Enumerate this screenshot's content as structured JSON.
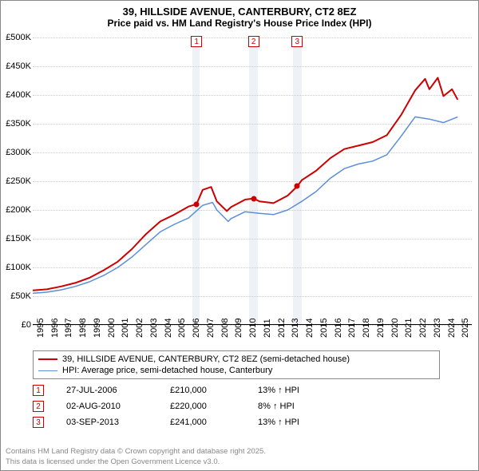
{
  "title": {
    "line1": "39, HILLSIDE AVENUE, CANTERBURY, CT2 8EZ",
    "line2": "Price paid vs. HM Land Registry's House Price Index (HPI)",
    "fontsize1": 13,
    "fontsize2": 12,
    "color": "#000000"
  },
  "chart": {
    "type": "line",
    "background_color": "#ffffff",
    "grid_color": "#cccccc",
    "x_range": [
      1995,
      2026
    ],
    "y_range": [
      0,
      500000
    ],
    "y_ticks": [
      0,
      50000,
      100000,
      150000,
      200000,
      250000,
      300000,
      350000,
      400000,
      450000,
      500000
    ],
    "y_tick_labels": [
      "£0",
      "£50K",
      "£100K",
      "£150K",
      "£200K",
      "£250K",
      "£300K",
      "£350K",
      "£400K",
      "£450K",
      "£500K"
    ],
    "x_ticks": [
      1995,
      1996,
      1997,
      1998,
      1999,
      2000,
      2001,
      2002,
      2003,
      2004,
      2005,
      2006,
      2007,
      2008,
      2009,
      2010,
      2011,
      2012,
      2013,
      2014,
      2015,
      2016,
      2017,
      2018,
      2019,
      2020,
      2021,
      2022,
      2023,
      2024,
      2025
    ],
    "label_fontsize": 11,
    "shade_bands": [
      {
        "x_start": 2006.3,
        "x_end": 2006.8
      },
      {
        "x_start": 2010.3,
        "x_end": 2010.9
      },
      {
        "x_start": 2013.4,
        "x_end": 2014.0
      }
    ],
    "shade_color": "#eef1f6",
    "markers": [
      {
        "n": "1",
        "x": 2006.56
      },
      {
        "n": "2",
        "x": 2010.59
      },
      {
        "n": "3",
        "x": 2013.67
      }
    ],
    "marker_border": "#cc0000",
    "sale_points": [
      {
        "x": 2006.56,
        "y": 210000
      },
      {
        "x": 2010.59,
        "y": 220000
      },
      {
        "x": 2013.67,
        "y": 241000
      }
    ],
    "series": [
      {
        "name": "price_paid",
        "label": "39, HILLSIDE AVENUE, CANTERBURY, CT2 8EZ (semi-detached house)",
        "color": "#cc0000",
        "line_width": 2,
        "points": [
          [
            1995,
            60000
          ],
          [
            1996,
            62000
          ],
          [
            1997,
            67000
          ],
          [
            1998,
            73000
          ],
          [
            1999,
            82000
          ],
          [
            2000,
            95000
          ],
          [
            2001,
            110000
          ],
          [
            2002,
            132000
          ],
          [
            2003,
            158000
          ],
          [
            2004,
            180000
          ],
          [
            2005,
            192000
          ],
          [
            2006,
            206000
          ],
          [
            2006.56,
            210000
          ],
          [
            2007,
            235000
          ],
          [
            2007.6,
            240000
          ],
          [
            2008,
            215000
          ],
          [
            2008.7,
            198000
          ],
          [
            2009,
            205000
          ],
          [
            2010,
            218000
          ],
          [
            2010.59,
            220000
          ],
          [
            2011,
            215000
          ],
          [
            2012,
            212000
          ],
          [
            2013,
            225000
          ],
          [
            2013.67,
            241000
          ],
          [
            2014,
            252000
          ],
          [
            2015,
            268000
          ],
          [
            2016,
            290000
          ],
          [
            2017,
            306000
          ],
          [
            2018,
            312000
          ],
          [
            2019,
            318000
          ],
          [
            2020,
            330000
          ],
          [
            2021,
            365000
          ],
          [
            2022,
            408000
          ],
          [
            2022.7,
            428000
          ],
          [
            2023,
            410000
          ],
          [
            2023.6,
            430000
          ],
          [
            2024,
            398000
          ],
          [
            2024.6,
            410000
          ],
          [
            2025,
            392000
          ]
        ]
      },
      {
        "name": "hpi",
        "label": "HPI: Average price, semi-detached house, Canterbury",
        "color": "#5b8fd6",
        "line_width": 1.5,
        "points": [
          [
            1995,
            55000
          ],
          [
            1996,
            57000
          ],
          [
            1997,
            61000
          ],
          [
            1998,
            67000
          ],
          [
            1999,
            75000
          ],
          [
            2000,
            86000
          ],
          [
            2001,
            100000
          ],
          [
            2002,
            118000
          ],
          [
            2003,
            140000
          ],
          [
            2004,
            162000
          ],
          [
            2005,
            175000
          ],
          [
            2006,
            186000
          ],
          [
            2007,
            208000
          ],
          [
            2007.7,
            213000
          ],
          [
            2008,
            200000
          ],
          [
            2008.8,
            180000
          ],
          [
            2009,
            185000
          ],
          [
            2010,
            197000
          ],
          [
            2011,
            194000
          ],
          [
            2012,
            192000
          ],
          [
            2013,
            200000
          ],
          [
            2014,
            215000
          ],
          [
            2015,
            232000
          ],
          [
            2016,
            255000
          ],
          [
            2017,
            272000
          ],
          [
            2018,
            280000
          ],
          [
            2019,
            285000
          ],
          [
            2020,
            296000
          ],
          [
            2021,
            328000
          ],
          [
            2022,
            362000
          ],
          [
            2023,
            358000
          ],
          [
            2024,
            352000
          ],
          [
            2025,
            362000
          ]
        ]
      }
    ]
  },
  "legend": {
    "border_color": "#888888",
    "fontsize": 11
  },
  "sales": [
    {
      "n": "1",
      "date": "27-JUL-2006",
      "price": "£210,000",
      "delta": "13% ↑ HPI"
    },
    {
      "n": "2",
      "date": "02-AUG-2010",
      "price": "£220,000",
      "delta": "8% ↑ HPI"
    },
    {
      "n": "3",
      "date": "03-SEP-2013",
      "price": "£241,000",
      "delta": "13% ↑ HPI"
    }
  ],
  "footer": {
    "line1": "Contains HM Land Registry data © Crown copyright and database right 2025.",
    "line2": "This data is licensed under the Open Government Licence v3.0.",
    "color": "#888888",
    "fontsize": 9.5
  }
}
